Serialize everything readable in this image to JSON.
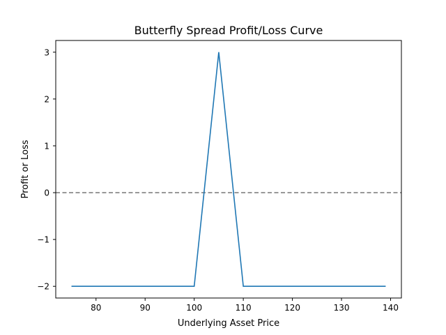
{
  "chart_data": {
    "type": "line",
    "title": "Butterfly Spread Profit/Loss Curve",
    "xlabel": "Underlying Asset Price",
    "ylabel": "Profit or Loss",
    "xlim": [
      71.8,
      142.2
    ],
    "ylim": [
      -2.25,
      3.25
    ],
    "xticks": [
      80,
      90,
      100,
      110,
      120,
      130,
      140
    ],
    "yticks": [
      -2,
      -1,
      0,
      1,
      2,
      3
    ],
    "ytick_labels": [
      "−2",
      "−1",
      "0",
      "1",
      "2",
      "3"
    ],
    "grid": false,
    "legend": "none",
    "series": [
      {
        "color": "#1f77b4",
        "x": [
          75,
          100,
          105,
          110,
          139
        ],
        "y": [
          -2,
          -2,
          3,
          -2,
          -2
        ]
      }
    ],
    "reference_lines": [
      {
        "orientation": "horizontal",
        "y": 0,
        "color": "#808080",
        "style": "dashed"
      }
    ]
  }
}
